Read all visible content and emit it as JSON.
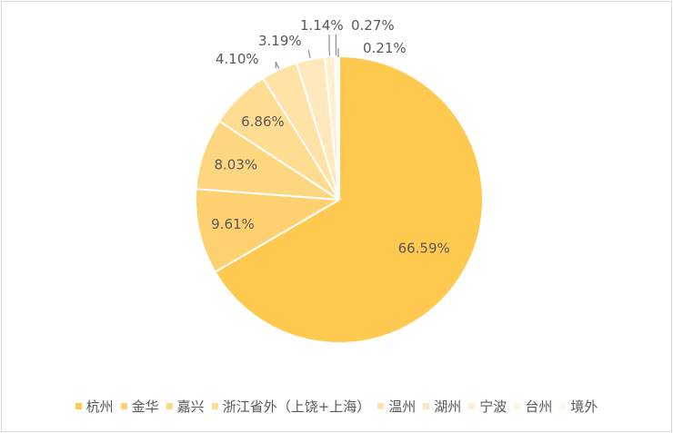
{
  "chart_data": {
    "type": "pie",
    "title": "",
    "categories": [
      "杭州",
      "金华",
      "嘉兴",
      "浙江省外（上饶+上海）",
      "温州",
      "湖州",
      "宁波",
      "台州",
      "境外"
    ],
    "values": [
      66.59,
      9.61,
      8.03,
      6.86,
      4.1,
      3.19,
      1.14,
      0.27,
      0.21
    ],
    "labels": [
      "66.59%",
      "9.61%",
      "8.03%",
      "6.86%",
      "4.10%",
      "3.19%",
      "1.14%",
      "0.27%",
      "0.21%"
    ],
    "colors": [
      "#FFC84F",
      "#FFD070",
      "#FFD680",
      "#FFDC92",
      "#FFE2A6",
      "#FFE8BB",
      "#FFEFCF",
      "#FFF4DE",
      "#FFF8EA"
    ],
    "legend_position": "bottom",
    "start_angle_deg": 0,
    "direction": "clockwise"
  }
}
